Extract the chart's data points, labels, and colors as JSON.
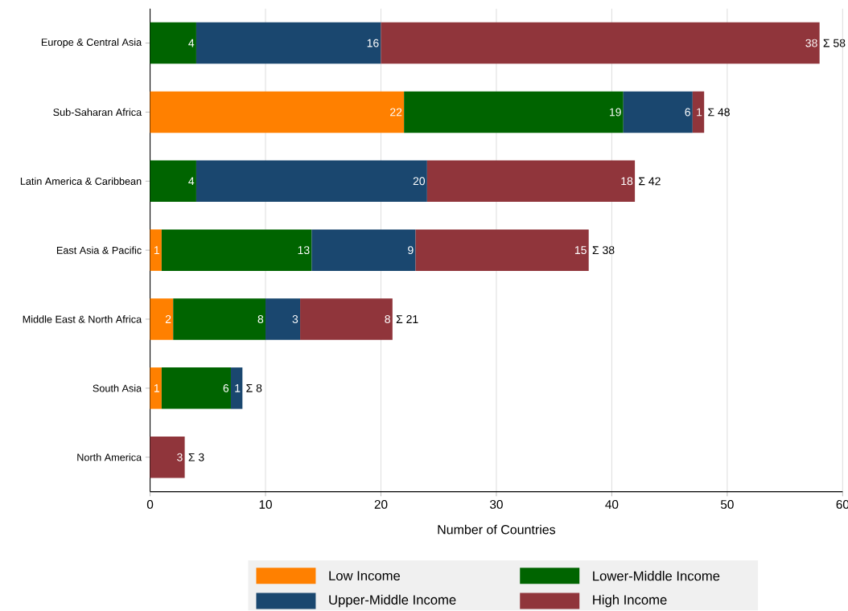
{
  "chart_data": {
    "type": "bar",
    "orientation": "horizontal",
    "stacked": true,
    "xlabel": "Number of Countries",
    "categories": [
      "Europe & Central Asia",
      "Sub-Saharan Africa",
      "Latin America & Caribbean",
      "East Asia & Pacific",
      "Middle East & North Africa",
      "South Asia",
      "North America"
    ],
    "series": [
      {
        "name": "Low Income",
        "color": "#ff8000",
        "values": [
          null,
          22,
          null,
          1,
          2,
          1,
          null
        ]
      },
      {
        "name": "Lower-Middle Income",
        "color": "#006400",
        "values": [
          4,
          19,
          4,
          13,
          8,
          6,
          null
        ]
      },
      {
        "name": "Upper-Middle Income",
        "color": "#1a476f",
        "values": [
          16,
          6,
          20,
          9,
          3,
          1,
          null
        ]
      },
      {
        "name": "High Income",
        "color": "#90353b",
        "values": [
          38,
          1,
          18,
          15,
          8,
          null,
          3
        ]
      }
    ],
    "totals": [
      "Σ 58",
      "Σ 48",
      "Σ 42",
      "Σ 38",
      "Σ 21",
      "Σ 8",
      "Σ 3"
    ],
    "data_labels": true,
    "xlim": [
      0,
      60
    ],
    "xticks": [
      0,
      10,
      20,
      30,
      40,
      50,
      60
    ],
    "grid": "x",
    "legend": "bottom"
  }
}
